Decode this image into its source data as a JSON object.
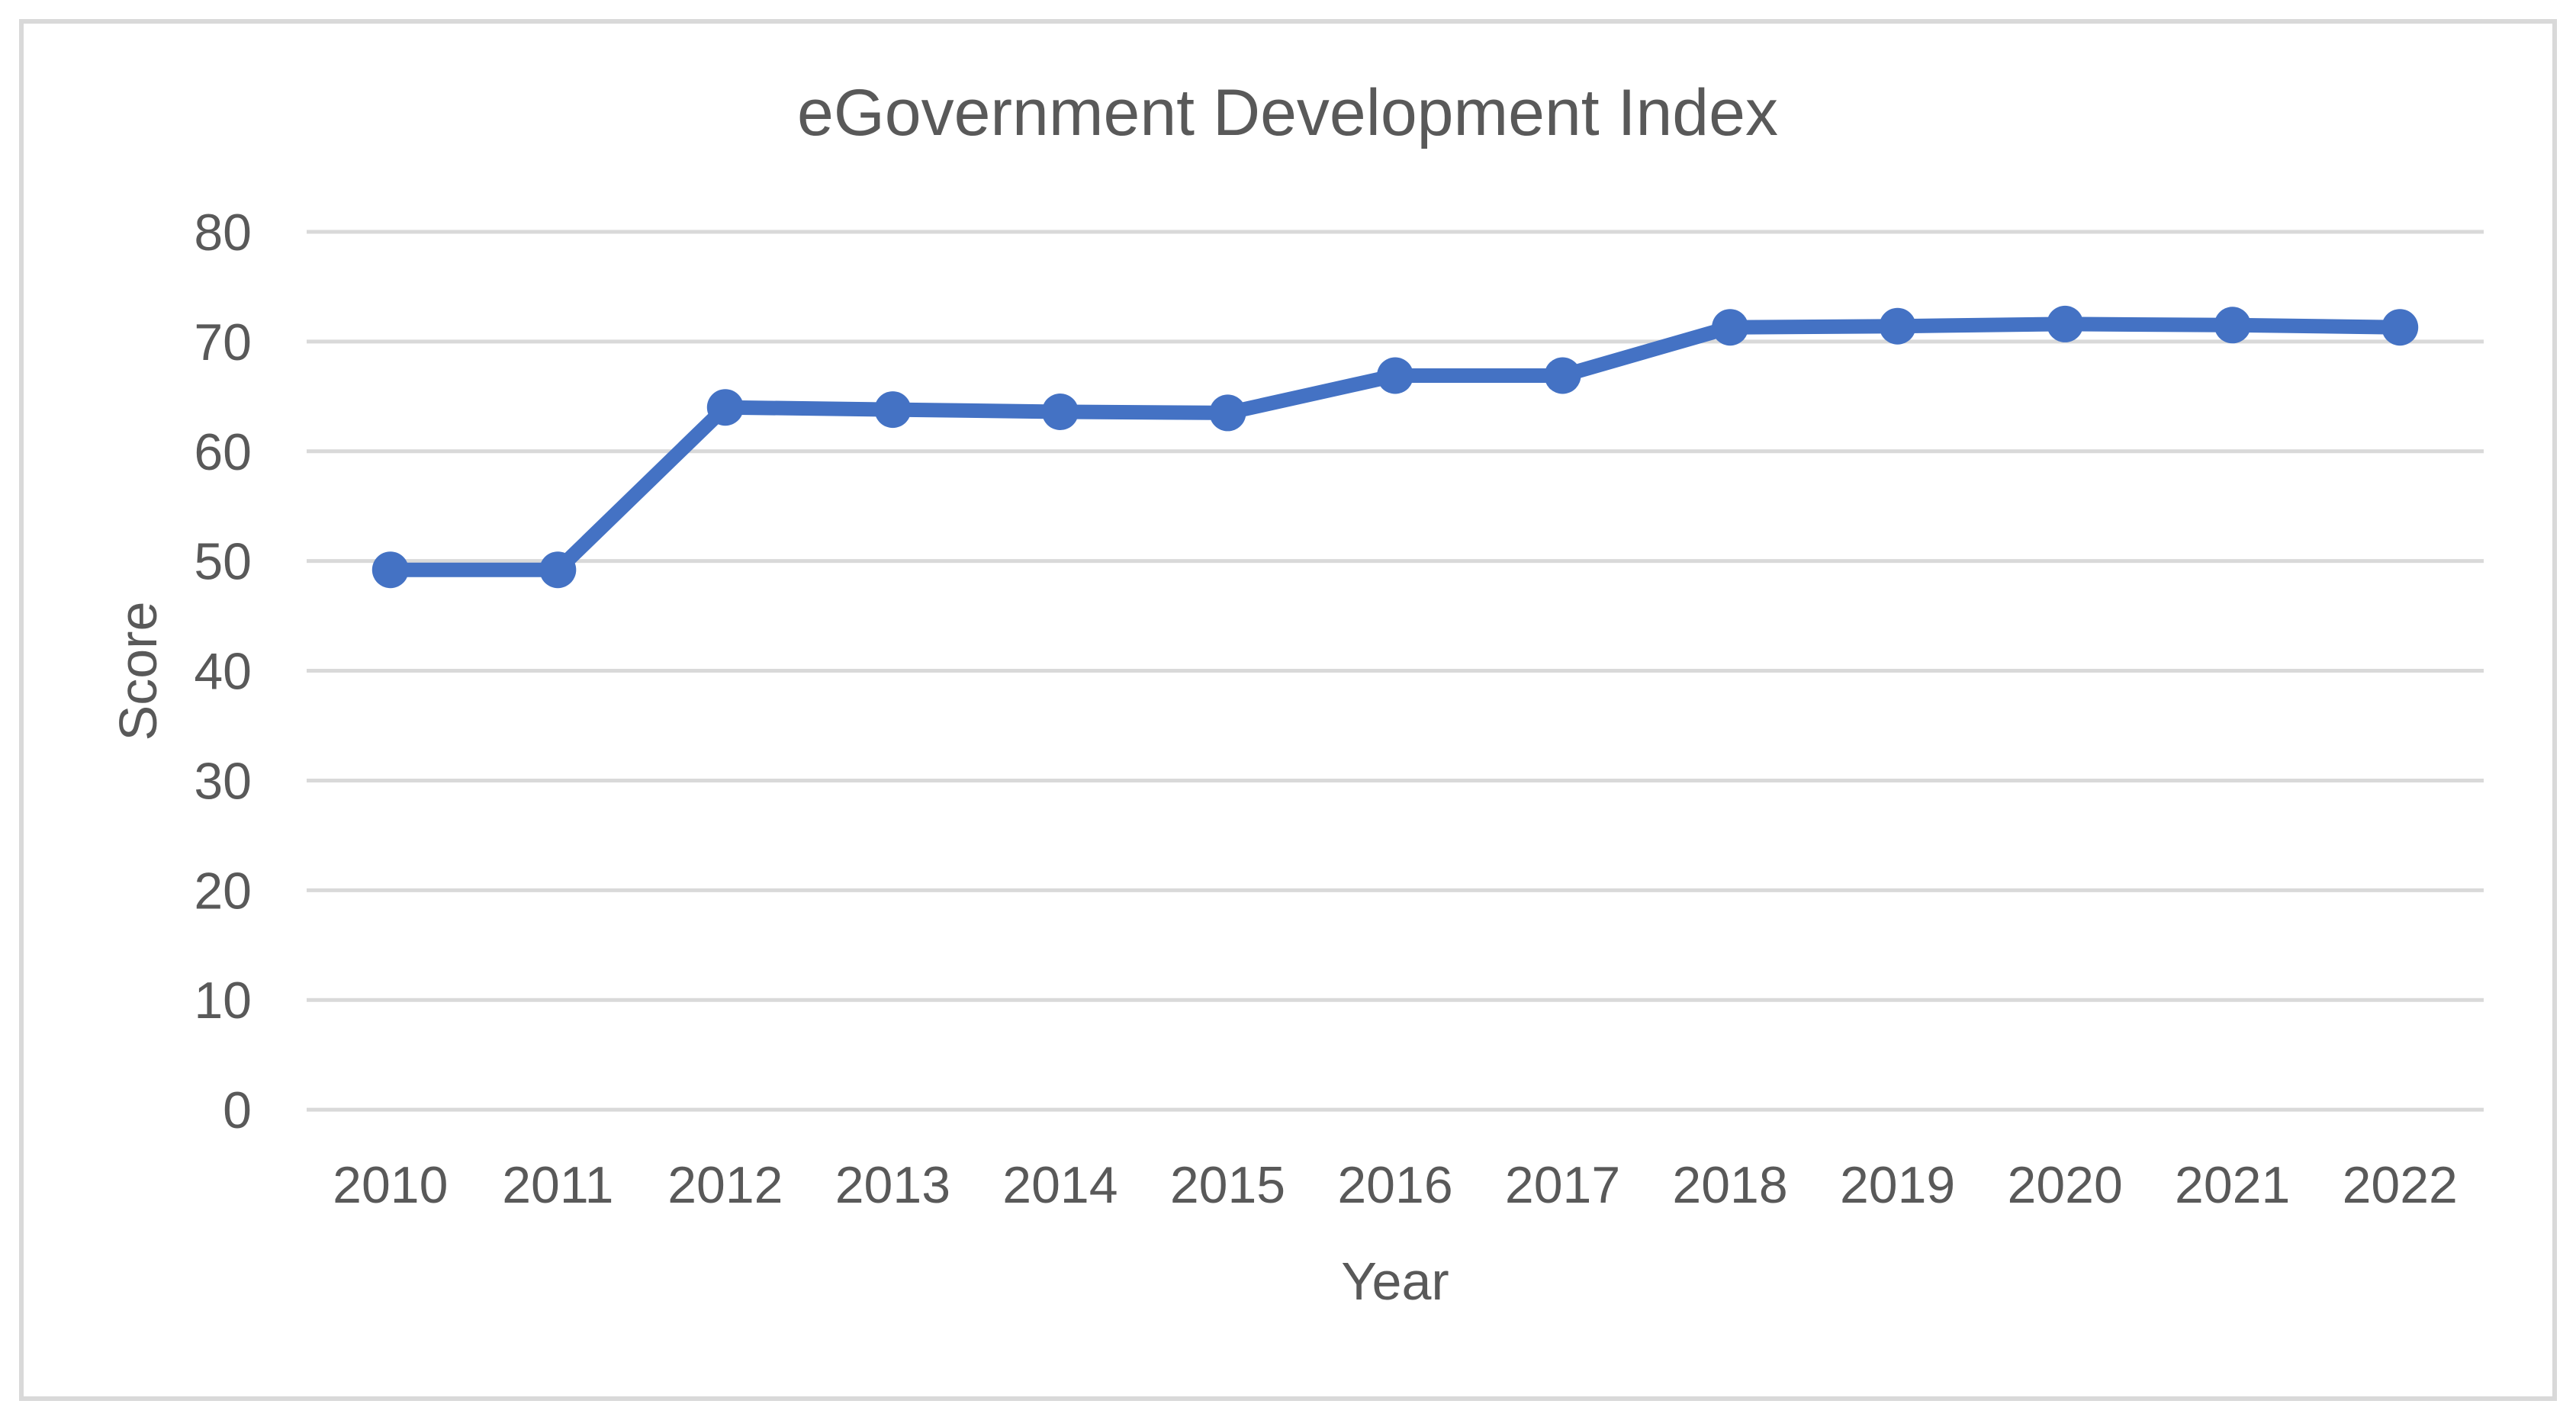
{
  "chart_data": {
    "type": "line",
    "title": "eGovernment Development Index",
    "xlabel": "Year",
    "ylabel": "Score",
    "categories": [
      "2010",
      "2011",
      "2012",
      "2013",
      "2014",
      "2015",
      "2016",
      "2017",
      "2018",
      "2019",
      "2020",
      "2021",
      "2022"
    ],
    "series": [
      {
        "name": "eGovernment Development Index",
        "values": [
          49.2,
          49.2,
          64.0,
          63.8,
          63.6,
          63.5,
          66.9,
          66.9,
          71.3,
          71.4,
          71.6,
          71.5,
          71.3
        ]
      }
    ],
    "ylim": [
      0,
      80
    ],
    "ytick_step": 10,
    "yticks": [
      0,
      10,
      20,
      30,
      40,
      50,
      60,
      70,
      80
    ],
    "grid": "horizontal-only",
    "legend": "none",
    "marker": "circle",
    "styles": {
      "line_color": "#4472C4",
      "marker_color": "#4472C4",
      "gridline_color": "#D9D9D9",
      "border_color": "#D9D9D9",
      "text_color": "#595959",
      "background": "#FFFFFF"
    }
  }
}
